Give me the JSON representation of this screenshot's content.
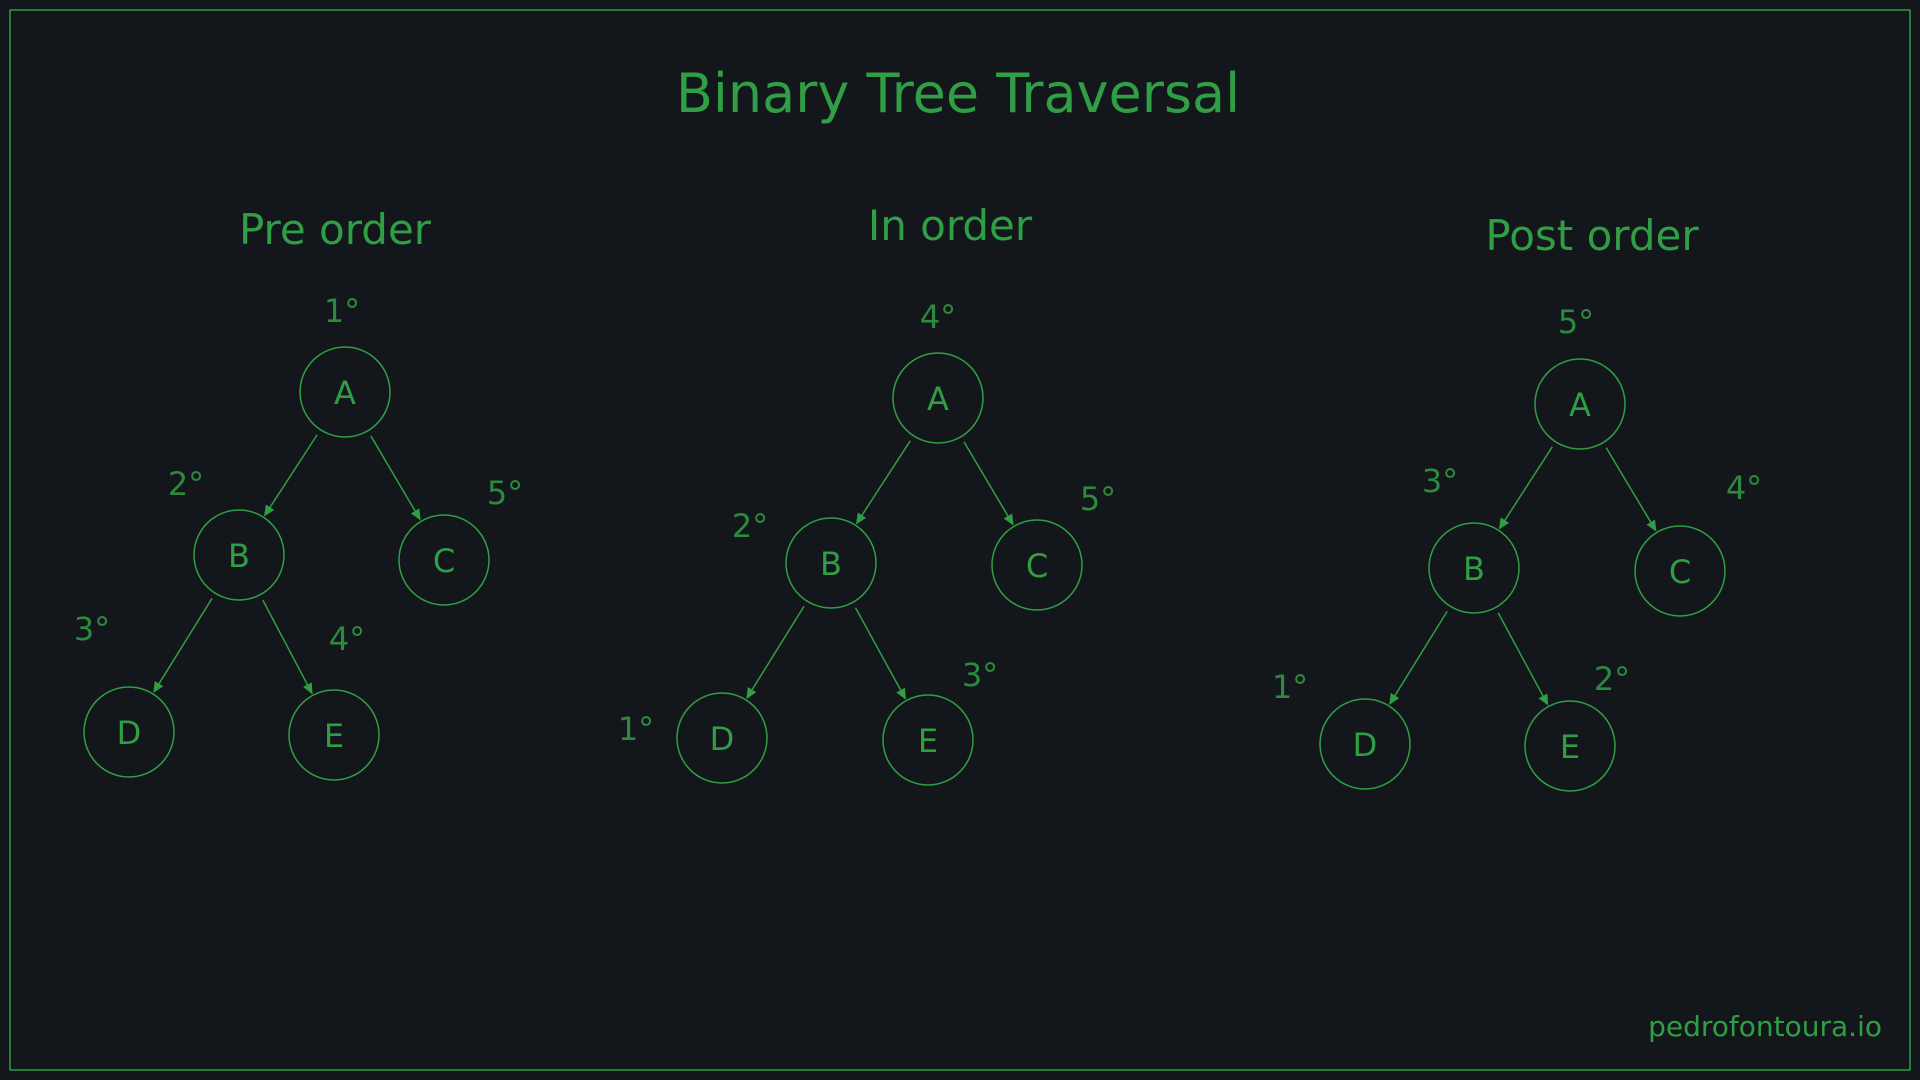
{
  "title": "Binary Tree Traversal",
  "footer": "pedrofontoura.io",
  "colors": {
    "background": "#13171b",
    "accent": "#2f9e44",
    "order_label": "#2b8a3e",
    "frame": "#2f9e44"
  },
  "trees": [
    {
      "heading": "Pre order",
      "nodes": [
        {
          "id": "A",
          "label": "A",
          "order": "1°"
        },
        {
          "id": "B",
          "label": "B",
          "order": "2°"
        },
        {
          "id": "C",
          "label": "C",
          "order": "5°"
        },
        {
          "id": "D",
          "label": "D",
          "order": "3°"
        },
        {
          "id": "E",
          "label": "E",
          "order": "4°"
        }
      ]
    },
    {
      "heading": "In order",
      "nodes": [
        {
          "id": "A",
          "label": "A",
          "order": "4°"
        },
        {
          "id": "B",
          "label": "B",
          "order": "2°"
        },
        {
          "id": "C",
          "label": "C",
          "order": "5°"
        },
        {
          "id": "D",
          "label": "D",
          "order": "1°"
        },
        {
          "id": "E",
          "label": "E",
          "order": "3°"
        }
      ]
    },
    {
      "heading": "Post order",
      "nodes": [
        {
          "id": "A",
          "label": "A",
          "order": "5°"
        },
        {
          "id": "B",
          "label": "B",
          "order": "3°"
        },
        {
          "id": "C",
          "label": "C",
          "order": "4°"
        },
        {
          "id": "D",
          "label": "D",
          "order": "1°"
        },
        {
          "id": "E",
          "label": "E",
          "order": "2°"
        }
      ]
    }
  ],
  "edges": [
    [
      "A",
      "B"
    ],
    [
      "A",
      "C"
    ],
    [
      "B",
      "D"
    ],
    [
      "B",
      "E"
    ]
  ]
}
